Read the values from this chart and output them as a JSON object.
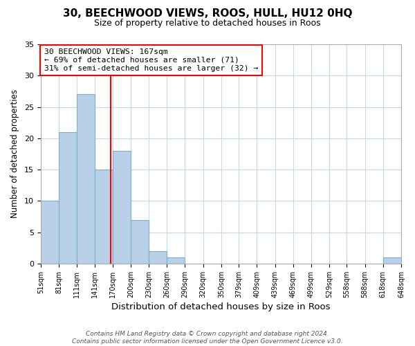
{
  "title1": "30, BEECHWOOD VIEWS, ROOS, HULL, HU12 0HQ",
  "title2": "Size of property relative to detached houses in Roos",
  "xlabel": "Distribution of detached houses by size in Roos",
  "ylabel": "Number of detached properties",
  "bin_edges": [
    51,
    81,
    111,
    141,
    170,
    200,
    230,
    260,
    290,
    320,
    350,
    379,
    409,
    439,
    469,
    499,
    529,
    558,
    588,
    618,
    648
  ],
  "counts": [
    10,
    21,
    27,
    15,
    18,
    7,
    2,
    1,
    0,
    0,
    0,
    0,
    0,
    0,
    0,
    0,
    0,
    0,
    0,
    1
  ],
  "bar_color": "#b8d0e8",
  "bar_edge_color": "#7aafd4",
  "vline_x": 167,
  "vline_color": "red",
  "ylim": [
    0,
    35
  ],
  "yticks": [
    0,
    5,
    10,
    15,
    20,
    25,
    30,
    35
  ],
  "annotation_title": "30 BEECHWOOD VIEWS: 167sqm",
  "annotation_line1": "← 69% of detached houses are smaller (71)",
  "annotation_line2": "31% of semi-detached houses are larger (32) →",
  "annotation_box_color": "white",
  "annotation_box_edgecolor": "red",
  "footnote1": "Contains HM Land Registry data © Crown copyright and database right 2024.",
  "footnote2": "Contains public sector information licensed under the Open Government Licence v3.0.",
  "fig_background_color": "white",
  "plot_background_color": "white",
  "grid_color": "#c8d8e8",
  "title1_fontsize": 11,
  "title2_fontsize": 9
}
